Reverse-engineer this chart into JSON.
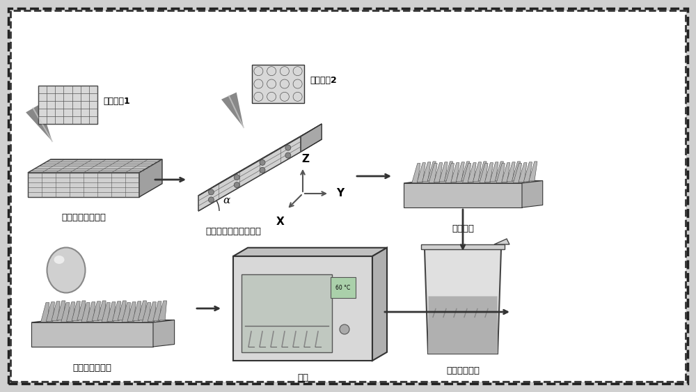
{
  "bg_color": "#ffffff",
  "border_color": "#333333",
  "title": "",
  "labels": {
    "step1": "纳秒激光单次加工",
    "step2": "纳秒激光加工斜柱阵列",
    "step3": "斜柱阵列",
    "step4": "低表面能修饰",
    "step5": "烘干",
    "step6": "超疏水斜柱阵列",
    "scan1": "扫描轨迹1",
    "scan2": "扫描轨迹2",
    "temp": "60 °C",
    "alpha": "α",
    "X": "X",
    "Y": "Y",
    "Z": "Z"
  },
  "colors": {
    "light_gray": "#d0d0d0",
    "mid_gray": "#a0a0a0",
    "dark_gray": "#606060",
    "very_light_gray": "#e8e8e8",
    "box_bg": "#c8c8c8",
    "grid_color": "#555555",
    "arrow_color": "#333333",
    "text_color": "#000000",
    "oven_color": "#cccccc",
    "beaker_color": "#dddddd",
    "liquid_color": "#aaaaaa",
    "pillar_color": "#b0b0b0",
    "droplet_color": "#b8b8b8"
  }
}
